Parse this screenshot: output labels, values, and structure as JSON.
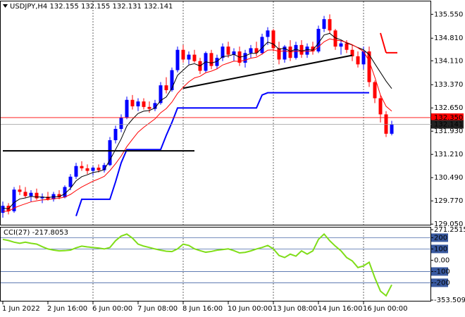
{
  "chart_data": [
    {
      "type": "candlestick",
      "title": "USDJPY,H4  132.155 132.155 132.131 132.141",
      "categories": [
        "1 Jun 2022",
        null,
        null,
        null,
        null,
        null,
        null,
        null,
        "2 Jun 16:00",
        null,
        null,
        null,
        null,
        null,
        null,
        null,
        "6 Jun 00:00",
        null,
        null,
        null,
        null,
        null,
        null,
        null,
        "7 Jun 08:00",
        null,
        null,
        null,
        null,
        null,
        null,
        null,
        "8 Jun 16:00",
        null,
        null,
        null,
        null,
        null,
        null,
        null,
        "10 Jun 00:00",
        null,
        null,
        null,
        null,
        null,
        null,
        null,
        "13 Jun 08:00",
        null,
        null,
        null,
        null,
        null,
        null,
        null,
        "14 Jun 16:00",
        null,
        null,
        null,
        null,
        null,
        null,
        null,
        "16 Jun 00:00",
        null,
        null,
        null,
        null,
        null
      ],
      "open": [
        129.4,
        129.62,
        129.45,
        130.12,
        130.05,
        129.92,
        130.02,
        129.85,
        129.9,
        129.82,
        129.98,
        129.88,
        130.2,
        130.52,
        130.85,
        130.78,
        130.7,
        130.8,
        130.72,
        130.88,
        131.65,
        132.0,
        132.35,
        132.9,
        132.7,
        132.85,
        132.68,
        132.62,
        132.8,
        133.35,
        133.2,
        133.82,
        134.45,
        134.15,
        134.3,
        134.1,
        133.8,
        134.35,
        133.95,
        134.2,
        134.55,
        134.3,
        134.4,
        134.05,
        134.35,
        134.5,
        134.35,
        134.85,
        135.05,
        134.5,
        134.15,
        134.55,
        134.2,
        134.6,
        134.3,
        134.55,
        134.4,
        135.1,
        135.4,
        135.05,
        134.55,
        134.65,
        134.45,
        134.25,
        134.0,
        134.4,
        133.45,
        132.95,
        132.45,
        131.85
      ],
      "high": [
        129.75,
        129.7,
        130.2,
        130.25,
        130.2,
        130.1,
        130.15,
        130.0,
        130.05,
        130.05,
        130.1,
        130.25,
        130.6,
        130.95,
        131.0,
        130.9,
        130.85,
        130.9,
        130.95,
        131.75,
        132.1,
        132.45,
        133.0,
        133.05,
        132.95,
        132.95,
        132.85,
        132.9,
        133.45,
        133.6,
        133.9,
        134.55,
        134.6,
        134.4,
        134.45,
        134.2,
        134.4,
        134.45,
        134.3,
        134.65,
        134.7,
        134.5,
        134.55,
        134.45,
        134.6,
        134.7,
        134.95,
        135.15,
        135.1,
        134.7,
        134.6,
        134.75,
        134.7,
        134.75,
        134.65,
        134.7,
        135.2,
        135.5,
        135.55,
        135.1,
        134.75,
        134.75,
        134.6,
        134.4,
        134.55,
        134.55,
        133.5,
        133.05,
        132.55,
        132.25
      ],
      "low": [
        129.25,
        129.35,
        129.4,
        129.95,
        129.85,
        129.75,
        129.8,
        129.7,
        129.78,
        129.75,
        129.82,
        129.85,
        130.1,
        130.45,
        130.7,
        130.6,
        130.55,
        130.65,
        130.65,
        130.85,
        131.55,
        131.9,
        132.3,
        132.6,
        132.55,
        132.6,
        132.5,
        132.55,
        132.75,
        133.1,
        133.15,
        133.75,
        134.05,
        134.0,
        134.05,
        133.7,
        133.75,
        133.85,
        133.85,
        134.1,
        134.2,
        134.1,
        133.95,
        133.9,
        134.2,
        134.25,
        134.3,
        134.6,
        134.4,
        134.0,
        134.05,
        134.1,
        134.15,
        134.2,
        134.2,
        134.3,
        134.35,
        135.0,
        134.95,
        134.45,
        134.3,
        134.35,
        134.1,
        133.9,
        133.85,
        133.3,
        132.8,
        132.2,
        131.75,
        131.8
      ],
      "close": [
        129.62,
        129.45,
        130.12,
        130.05,
        129.92,
        130.02,
        129.85,
        129.9,
        129.82,
        129.98,
        129.88,
        130.2,
        130.52,
        130.85,
        130.78,
        130.7,
        130.8,
        130.72,
        130.88,
        131.65,
        132.0,
        132.35,
        132.9,
        132.7,
        132.85,
        132.68,
        132.62,
        132.8,
        133.35,
        133.2,
        133.82,
        134.45,
        134.15,
        134.3,
        134.1,
        133.8,
        134.35,
        133.95,
        134.2,
        134.55,
        134.3,
        134.4,
        134.05,
        134.35,
        134.5,
        134.35,
        134.85,
        135.05,
        134.5,
        134.15,
        134.55,
        134.2,
        134.6,
        134.3,
        134.55,
        134.4,
        135.1,
        135.4,
        135.05,
        134.55,
        134.65,
        134.45,
        134.25,
        134.0,
        134.4,
        133.45,
        132.95,
        132.45,
        131.85,
        132.141
      ],
      "up_color": "#0000ff",
      "down_color": "#ff0000",
      "series": [
        {
          "color": "#000000",
          "values": [
            129.55,
            129.52,
            129.72,
            129.83,
            129.86,
            129.91,
            129.89,
            129.89,
            129.87,
            129.9,
            129.9,
            129.99,
            130.16,
            130.39,
            130.52,
            130.58,
            130.65,
            130.68,
            130.74,
            131.04,
            131.36,
            131.69,
            132.09,
            132.3,
            132.48,
            132.55,
            132.57,
            132.65,
            132.88,
            132.99,
            133.26,
            133.66,
            133.82,
            133.98,
            134.02,
            133.95,
            134.08,
            134.04,
            134.09,
            134.24,
            134.26,
            134.31,
            134.22,
            134.26,
            134.34,
            134.34,
            134.51,
            134.69,
            134.63,
            134.47,
            134.5,
            134.4,
            134.47,
            134.41,
            134.46,
            134.44,
            134.66,
            134.91,
            134.96,
            134.82,
            134.76,
            134.66,
            134.6,
            134.52,
            134.45,
            134.3,
            134.02,
            133.75,
            133.48,
            133.25
          ]
        },
        {
          "color": "#ff0000",
          "values": [
            129.45,
            129.45,
            129.55,
            129.62,
            129.68,
            129.74,
            129.77,
            129.8,
            129.81,
            129.84,
            129.85,
            129.89,
            129.97,
            130.09,
            130.2,
            130.29,
            130.38,
            130.45,
            130.53,
            130.71,
            130.92,
            131.16,
            131.45,
            131.68,
            131.9,
            132.05,
            132.18,
            132.31,
            132.5,
            132.63,
            132.83,
            133.1,
            133.29,
            133.46,
            133.58,
            133.63,
            133.74,
            133.79,
            133.86,
            133.98,
            134.04,
            134.1,
            134.09,
            134.13,
            134.19,
            134.22,
            134.32,
            134.44,
            134.45,
            134.4,
            134.42,
            134.38,
            134.41,
            134.39,
            134.41,
            134.41,
            134.54,
            134.7,
            134.79,
            134.75,
            134.73,
            134.68,
            134.61,
            134.51,
            134.4,
            134.1,
            133.6,
            133.05,
            132.7,
            132.55
          ]
        },
        {
          "color": "#0000ff",
          "values": [
            null,
            null,
            null,
            null,
            null,
            null,
            null,
            null,
            null,
            null,
            null,
            null,
            null,
            129.3,
            129.82,
            129.82,
            129.82,
            129.82,
            129.82,
            129.82,
            130.36,
            130.95,
            131.36,
            131.36,
            131.36,
            131.36,
            131.36,
            131.36,
            131.36,
            131.8,
            132.2,
            132.65,
            132.65,
            132.65,
            132.65,
            132.65,
            132.65,
            132.65,
            132.65,
            132.65,
            132.65,
            132.65,
            132.65,
            132.65,
            132.65,
            132.65,
            133.05,
            133.12,
            133.12,
            133.12,
            133.12,
            133.12,
            133.12,
            133.12,
            133.12,
            133.12,
            133.12,
            133.12,
            133.12,
            133.12,
            133.12,
            133.12,
            133.12,
            133.12,
            133.12,
            133.12,
            null,
            null,
            null,
            null
          ]
        }
      ],
      "lines": [
        {
          "color": "#000000",
          "start": 0,
          "end": 34,
          "values": [
            131.32,
            131.32
          ]
        },
        {
          "color": "#000000",
          "start": 32,
          "end": 62,
          "values": [
            133.26,
            134.28
          ]
        },
        {
          "color": "#ff0000",
          "start": 67,
          "end": 68,
          "values": [
            134.97,
            134.36
          ]
        },
        {
          "color": "#ff0000",
          "start": 68,
          "end": 70,
          "values": [
            134.36,
            134.36
          ]
        }
      ],
      "ask_line": {
        "value": 132.35,
        "label": "132.350",
        "color": "#ff0000"
      },
      "price_line": {
        "value": 132.141,
        "label": "132.141"
      },
      "ylim": [
        129.01,
        135.95
      ],
      "yticks": [
        {
          "value": 135.55,
          "label": "135.550"
        },
        {
          "value": 134.81,
          "label": "134.810"
        },
        {
          "value": 134.11,
          "label": "134.110"
        },
        {
          "value": 133.37,
          "label": "133.370"
        },
        {
          "value": 132.65,
          "label": "132.650"
        },
        {
          "value": 131.93,
          "label": "131.930"
        },
        {
          "value": 131.21,
          "label": "131.210"
        },
        {
          "value": 130.49,
          "label": "130.490"
        },
        {
          "value": 129.77,
          "label": "129.770"
        },
        {
          "value": 129.05,
          "label": "129.050"
        }
      ]
    },
    {
      "type": "line",
      "title": "CCI(27) -217.8053",
      "color": "#7fdd18",
      "values": [
        185,
        175,
        160,
        150,
        160,
        150,
        143,
        120,
        100,
        90,
        83,
        85,
        90,
        110,
        125,
        118,
        113,
        108,
        100,
        113,
        173,
        214,
        232,
        196,
        143,
        125,
        113,
        100,
        89,
        80,
        77,
        101,
        143,
        131,
        101,
        85,
        71,
        78,
        89,
        95,
        101,
        85,
        65,
        70,
        83,
        100,
        113,
        131,
        101,
        42,
        24,
        54,
        36,
        83,
        54,
        83,
        185,
        232,
        173,
        125,
        83,
        24,
        -6,
        -65,
        -50,
        -18,
        -155,
        -274,
        -315,
        -217.8053
      ],
      "ylim": [
        -353.5092,
        271.2515
      ],
      "yticks": [
        271.2515,
        200,
        100,
        {
          "value": 0,
          "label": "0.00"
        },
        -100,
        -200,
        -353.5092
      ],
      "levels": [
        200,
        100,
        -100,
        -200
      ]
    }
  ]
}
